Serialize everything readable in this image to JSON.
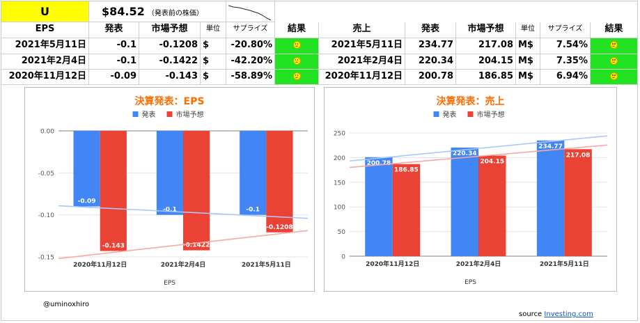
{
  "ticker": "U",
  "price": "$84.52",
  "price_note": "（発表前の株価）",
  "eps_table": {
    "headers": [
      "EPS",
      "発表",
      "市場予想",
      "単位",
      "サプライズ",
      "結果"
    ],
    "rows": [
      {
        "date": "2021年5月11日",
        "actual": "-0.1",
        "forecast": "-0.1208",
        "unit": "$",
        "surprise": "-20.80%"
      },
      {
        "date": "2021年2月4日",
        "actual": "-0.1",
        "forecast": "-0.1422",
        "unit": "$",
        "surprise": "-42.20%"
      },
      {
        "date": "2020年11月12日",
        "actual": "-0.09",
        "forecast": "-0.143",
        "unit": "$",
        "surprise": "-58.89%"
      }
    ]
  },
  "rev_table": {
    "headers": [
      "売上",
      "発表",
      "市場予想",
      "単位",
      "サプライズ",
      "結果"
    ],
    "rows": [
      {
        "date": "2021年5月11日",
        "actual": "234.77",
        "forecast": "217.08",
        "unit": "M$",
        "surprise": "7.54%"
      },
      {
        "date": "2021年2月4日",
        "actual": "220.34",
        "forecast": "204.15",
        "unit": "M$",
        "surprise": "7.35%"
      },
      {
        "date": "2020年11月12日",
        "actual": "200.78",
        "forecast": "186.85",
        "unit": "M$",
        "surprise": "6.94%"
      }
    ]
  },
  "chart_data": [
    {
      "type": "bar",
      "title": "決算発表：EPS",
      "xlabel": "EPS",
      "ylabel": "",
      "categories": [
        "2020年11月12日",
        "2021年2月4日",
        "2021年5月11日"
      ],
      "series": [
        {
          "name": "発表",
          "values": [
            -0.09,
            -0.1,
            -0.1
          ],
          "labels": [
            "-0.09",
            "-0.1",
            "-0.1"
          ],
          "color": "#4285f4"
        },
        {
          "name": "市場予想",
          "values": [
            -0.143,
            -0.1422,
            -0.1208
          ],
          "labels": [
            "-0.143",
            "-0.1422",
            "-0.1208"
          ],
          "color": "#ea4335"
        }
      ],
      "ylim": [
        -0.15,
        0.0
      ],
      "yticks": [
        0.0,
        -0.05,
        -0.1,
        -0.15
      ],
      "ytick_labels": [
        "0.00",
        "-0.05",
        "-0.10",
        "-0.15"
      ],
      "grid": true,
      "legend": "top",
      "trendlines": true
    },
    {
      "type": "bar",
      "title": "決算発表：売上",
      "xlabel": "EPS",
      "ylabel": "",
      "categories": [
        "2020年11月12日",
        "2021年2月4日",
        "2021年5月11日"
      ],
      "series": [
        {
          "name": "発表",
          "values": [
            200.78,
            220.34,
            234.77
          ],
          "labels": [
            "200.78",
            "220.34",
            "234.77"
          ],
          "color": "#4285f4"
        },
        {
          "name": "市場予想",
          "values": [
            186.85,
            204.15,
            217.08
          ],
          "labels": [
            "186.85",
            "204.15",
            "217.08"
          ],
          "color": "#ea4335"
        }
      ],
      "ylim": [
        0,
        250
      ],
      "yticks": [
        0,
        50,
        100,
        150,
        200,
        250
      ],
      "ytick_labels": [
        "0",
        "50",
        "100",
        "150",
        "200",
        "250"
      ],
      "grid": true,
      "legend": "top",
      "trendlines": true
    }
  ],
  "footer": {
    "handle": "@uminoxhiro",
    "source_label": "source",
    "source_link": "Investing.com"
  }
}
